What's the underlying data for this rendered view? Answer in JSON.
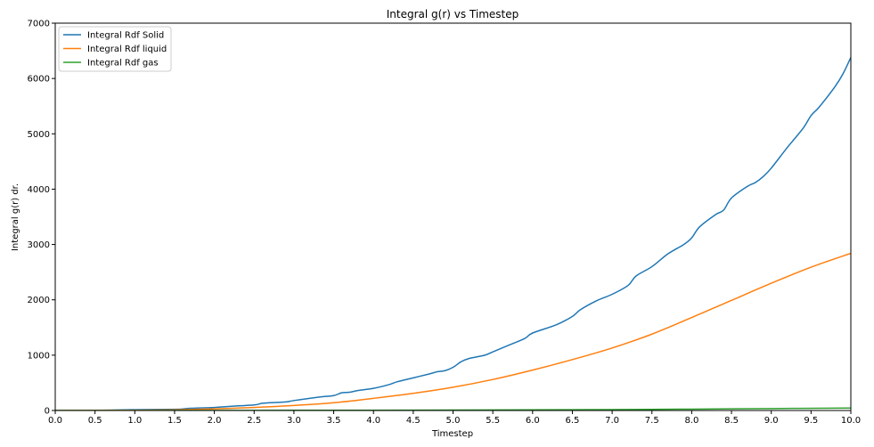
{
  "chart_data": {
    "type": "line",
    "title": "Integral g(r) vs Timestep",
    "xlabel": "Timestep",
    "ylabel": "Integral g(r) dr.",
    "xlim": [
      0,
      10
    ],
    "ylim": [
      0,
      7000
    ],
    "xticks": [
      "0.0",
      "0.5",
      "1.0",
      "1.5",
      "2.0",
      "2.5",
      "3.0",
      "3.5",
      "4.0",
      "4.5",
      "5.0",
      "5.5",
      "6.0",
      "6.5",
      "7.0",
      "7.5",
      "8.0",
      "8.5",
      "9.0",
      "9.5",
      "10.0"
    ],
    "yticks": [
      "0",
      "1000",
      "2000",
      "3000",
      "4000",
      "5000",
      "6000",
      "7000"
    ],
    "grid": false,
    "legend_position": "top-left",
    "series": [
      {
        "name": "Integral Rdf Solid",
        "color": "#1f77b4",
        "x": [
          0,
          0.5,
          0.9,
          1.0,
          1.5,
          1.6,
          1.7,
          2.0,
          2.2,
          2.5,
          2.6,
          2.7,
          2.9,
          3.0,
          3.3,
          3.5,
          3.6,
          3.7,
          3.8,
          4.0,
          4.2,
          4.3,
          4.5,
          4.7,
          4.8,
          4.9,
          5.0,
          5.1,
          5.2,
          5.4,
          5.5,
          5.7,
          5.9,
          6.0,
          6.3,
          6.5,
          6.6,
          6.8,
          7.0,
          7.2,
          7.3,
          7.5,
          7.7,
          7.9,
          8.0,
          8.1,
          8.3,
          8.4,
          8.5,
          8.7,
          8.8,
          8.9,
          9.0,
          9.2,
          9.4,
          9.5,
          9.6,
          9.8,
          9.9,
          10.0
        ],
        "y": [
          0,
          3,
          12,
          15,
          22,
          28,
          40,
          55,
          75,
          100,
          130,
          140,
          155,
          180,
          240,
          270,
          320,
          330,
          360,
          400,
          470,
          520,
          590,
          660,
          700,
          720,
          780,
          880,
          940,
          1000,
          1060,
          1180,
          1300,
          1400,
          1550,
          1700,
          1820,
          1980,
          2100,
          2260,
          2430,
          2600,
          2830,
          3000,
          3120,
          3320,
          3540,
          3620,
          3840,
          4050,
          4120,
          4230,
          4380,
          4750,
          5100,
          5330,
          5480,
          5850,
          6080,
          6380
        ]
      },
      {
        "name": "Integral Rdf liquid",
        "color": "#ff7f0e",
        "x": [
          0,
          0.5,
          1.0,
          1.5,
          2.0,
          2.5,
          3.0,
          3.5,
          4.0,
          4.5,
          5.0,
          5.5,
          6.0,
          6.5,
          7.0,
          7.5,
          8.0,
          8.5,
          9.0,
          9.5,
          10.0
        ],
        "y": [
          0,
          2,
          5,
          12,
          30,
          55,
          90,
          140,
          220,
          310,
          420,
          560,
          730,
          920,
          1130,
          1380,
          1680,
          1990,
          2300,
          2590,
          2840
        ]
      },
      {
        "name": "Integral Rdf gas",
        "color": "#2ca02c",
        "x": [
          0,
          1,
          2,
          3,
          4,
          5,
          6,
          7,
          8,
          9,
          10
        ],
        "y": [
          0,
          1,
          2,
          3,
          5,
          8,
          12,
          17,
          25,
          35,
          45
        ]
      }
    ]
  }
}
